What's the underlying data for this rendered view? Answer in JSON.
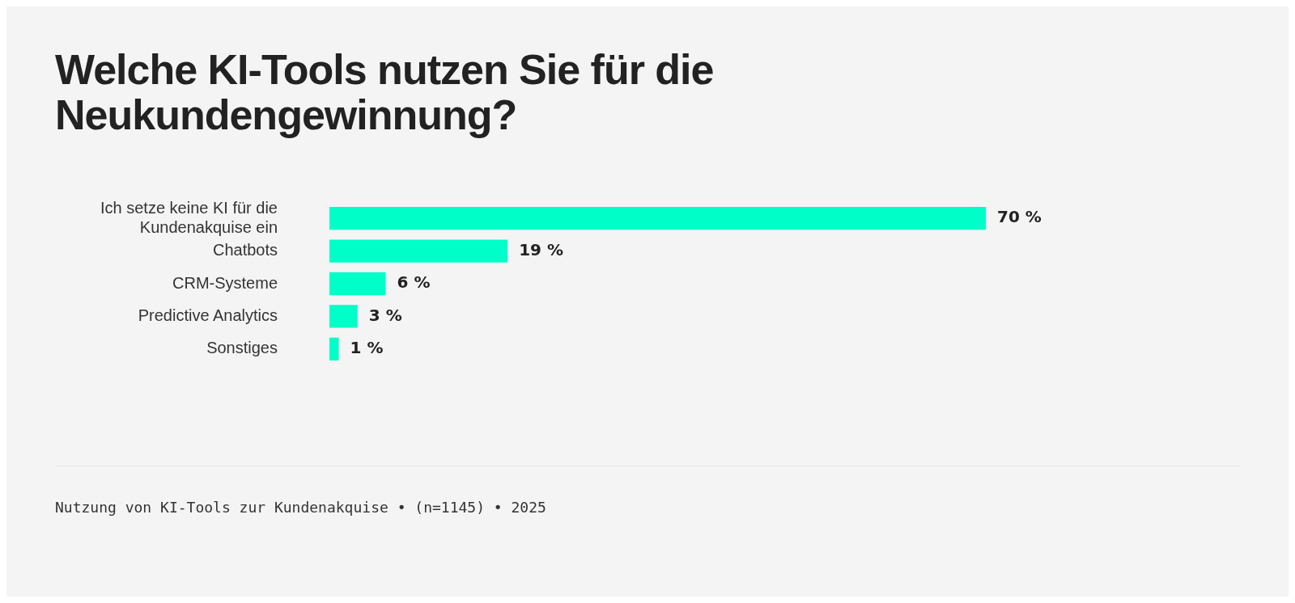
{
  "chart_data": {
    "type": "bar",
    "orientation": "horizontal",
    "title": "Welche KI-Tools nutzen Sie für die Neukundengewinnung?",
    "categories": [
      "Ich setze keine KI für die Kundenakquise ein",
      "Chatbots",
      "CRM-Systeme",
      "Predictive Analytics",
      "Sonstiges"
    ],
    "values": [
      70,
      19,
      6,
      3,
      1
    ],
    "value_labels": [
      "70 %",
      "19 %",
      "6 %",
      "3 %",
      "1 %"
    ],
    "color": "#00ffc8",
    "legend": false,
    "tick_labels": "y",
    "annotations": [
      "Nutzung von KI-Tools zur Kundenakquise • (n=1145) • 2025"
    ]
  }
}
